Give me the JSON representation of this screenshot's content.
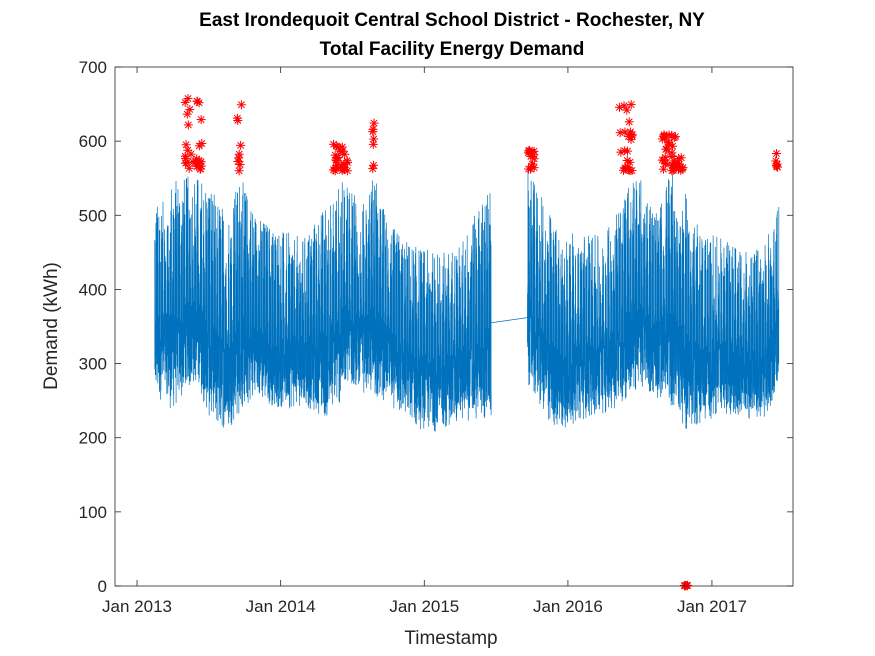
{
  "chart_data": {
    "type": "line",
    "title": "East Irondequoit Central School District - Rochester, NY",
    "subtitle": "Total Facility Energy Demand",
    "xlabel": "Timestamp",
    "ylabel": "Demand (kWh)",
    "x_ticks": [
      "Jan 2013",
      "Jan 2014",
      "Jan 2015",
      "Jan 2016",
      "Jan 2017"
    ],
    "y_ticks": [
      "0",
      "100",
      "200",
      "300",
      "400",
      "500",
      "600",
      "700"
    ],
    "xlim": [
      "2012-11-06",
      "2017-07-26"
    ],
    "ylim": [
      0,
      700
    ],
    "grid": false,
    "series_color": "#0072bd",
    "outlier_color": "#ff0000",
    "series": [
      {
        "style": "line",
        "segments": [
          {
            "from": "2013-02-15",
            "to": "2015-06-20",
            "envelope": [
              [
                "2013-02-15",
                240,
                520
              ],
              [
                "2013-04-01",
                220,
                550
              ],
              [
                "2013-06-01",
                260,
                555
              ],
              [
                "2013-07-10",
                200,
                540
              ],
              [
                "2013-08-20",
                195,
                500
              ],
              [
                "2013-09-20",
                215,
                555
              ],
              [
                "2013-11-01",
                240,
                500
              ],
              [
                "2014-01-01",
                225,
                480
              ],
              [
                "2014-03-01",
                230,
                470
              ],
              [
                "2014-05-01",
                210,
                520
              ],
              [
                "2014-06-25",
                245,
                560
              ],
              [
                "2014-07-20",
                250,
                500
              ],
              [
                "2014-08-25",
                240,
                560
              ],
              [
                "2014-10-01",
                235,
                490
              ],
              [
                "2014-12-01",
                200,
                460
              ],
              [
                "2015-02-01",
                195,
                450
              ],
              [
                "2015-04-01",
                210,
                460
              ],
              [
                "2015-06-20",
                205,
                545
              ]
            ]
          },
          {
            "from": "2015-06-20",
            "to": "2015-09-20",
            "gap_line": [
              [
                355
              ],
              [
                362
              ]
            ]
          },
          {
            "from": "2015-09-20",
            "to": "2017-06-20",
            "envelope": [
              [
                "2015-09-20",
                260,
                560
              ],
              [
                "2015-11-01",
                210,
                520
              ],
              [
                "2015-12-15",
                195,
                470
              ],
              [
                "2016-02-01",
                210,
                480
              ],
              [
                "2016-04-01",
                220,
                470
              ],
              [
                "2016-05-20",
                230,
                530
              ],
              [
                "2016-06-25",
                250,
                560
              ],
              [
                "2016-08-15",
                240,
                500
              ],
              [
                "2016-09-15",
                230,
                560
              ],
              [
                "2016-10-25",
                190,
                530
              ],
              [
                "2016-12-01",
                205,
                480
              ],
              [
                "2017-02-01",
                220,
                470
              ],
              [
                "2017-04-01",
                215,
                450
              ],
              [
                "2017-05-15",
                200,
                460
              ],
              [
                "2017-06-20",
                265,
                520
              ]
            ]
          }
        ]
      },
      {
        "style": "marker-asterisk",
        "clusters": [
          {
            "x_range": [
              "2013-05-03",
              "2013-06-15"
            ],
            "y_range": [
              562,
              662
            ]
          },
          {
            "x_range": [
              "2013-09-12",
              "2013-09-25"
            ],
            "y_range": [
              560,
              655
            ]
          },
          {
            "x_range": [
              "2014-05-15",
              "2014-06-22"
            ],
            "y_range": [
              560,
              600
            ]
          },
          {
            "x_range": [
              "2014-08-22",
              "2014-09-01"
            ],
            "y_range": [
              560,
              628
            ]
          },
          {
            "x_range": [
              "2015-09-20",
              "2015-10-10"
            ],
            "y_range": [
              562,
              588
            ]
          },
          {
            "x_range": [
              "2016-05-10",
              "2016-06-15"
            ],
            "y_range": [
              560,
              650
            ]
          },
          {
            "x_range": [
              "2016-08-25",
              "2016-10-20"
            ],
            "y_range": [
              560,
              610
            ]
          },
          {
            "x_range": [
              "2016-10-22",
              "2016-11-01"
            ],
            "y_range": [
              0,
              5
            ]
          },
          {
            "x_range": [
              "2017-06-12",
              "2017-06-20"
            ],
            "y_range": [
              565,
              585
            ]
          }
        ]
      }
    ]
  }
}
